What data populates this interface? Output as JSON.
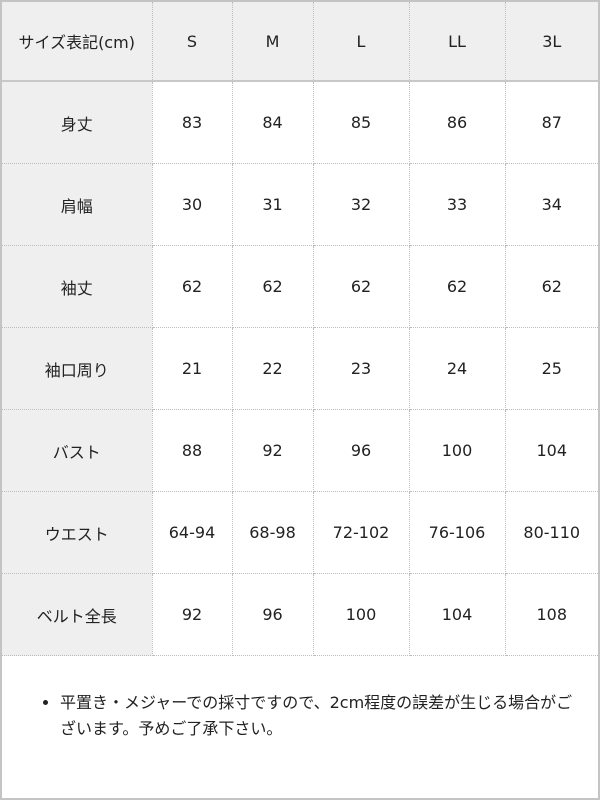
{
  "table": {
    "header": [
      "サイズ表記(cm)",
      "S",
      "M",
      "L",
      "LL",
      "3L"
    ],
    "rows": [
      [
        "身丈",
        "83",
        "84",
        "85",
        "86",
        "87"
      ],
      [
        "肩幅",
        "30",
        "31",
        "32",
        "33",
        "34"
      ],
      [
        "袖丈",
        "62",
        "62",
        "62",
        "62",
        "62"
      ],
      [
        "袖口周り",
        "21",
        "22",
        "23",
        "24",
        "25"
      ],
      [
        "バスト",
        "88",
        "92",
        "96",
        "100",
        "104"
      ],
      [
        "ウエスト",
        "64-94",
        "68-98",
        "72-102",
        "76-106",
        "80-110"
      ],
      [
        "ベルト全長",
        "92",
        "96",
        "100",
        "104",
        "108"
      ]
    ]
  },
  "note": "平置き・メジャーでの採寸ですので、2cm程度の誤差が生じる場合がございます。予めご了承下さい。"
}
